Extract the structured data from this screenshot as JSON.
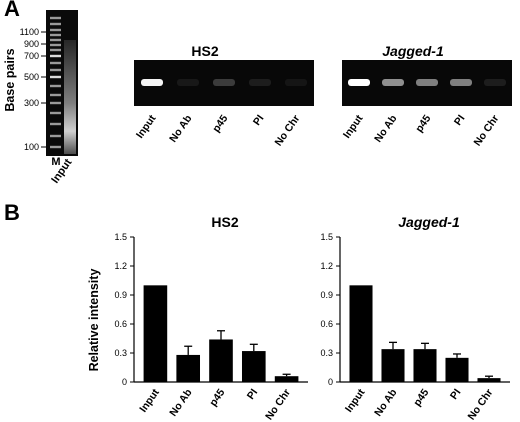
{
  "panel_a": {
    "letter": "A",
    "ladder": {
      "ylabel": "Base pairs",
      "tick_labels": [
        "1100",
        "900",
        "700",
        "500",
        "300",
        "100"
      ],
      "lane_labels": [
        "M",
        "Input"
      ]
    },
    "gels": [
      {
        "title": "HS2",
        "title_style": "bold",
        "lanes": [
          "Input",
          "No Ab",
          "p45",
          "PI",
          "No Chr"
        ],
        "band_intensity": [
          0.95,
          0.05,
          0.25,
          0.08,
          0.03
        ]
      },
      {
        "title": "Jagged-1",
        "title_style": "bold-italic",
        "lanes": [
          "Input",
          "No Ab",
          "p45",
          "PI",
          "No Chr"
        ],
        "band_intensity": [
          1.0,
          0.55,
          0.5,
          0.5,
          0.08
        ]
      }
    ]
  },
  "panel_b": {
    "letter": "B",
    "ylabel": "Relative intensity"
  },
  "chart_data": [
    {
      "type": "bar",
      "title": "HS2",
      "categories": [
        "Input",
        "No Ab",
        "p45",
        "PI",
        "No Chr"
      ],
      "values": [
        1.0,
        0.28,
        0.44,
        0.32,
        0.06
      ],
      "errors": [
        0.0,
        0.09,
        0.09,
        0.07,
        0.02
      ],
      "ylabel": "Relative intensity",
      "ylim": [
        0,
        1.5
      ],
      "yticks": [
        "0",
        "0.3",
        "0.6",
        "0.9",
        "1.2",
        "1.5"
      ],
      "bar_color": "#000000"
    },
    {
      "type": "bar",
      "title": "Jagged-1",
      "categories": [
        "Input",
        "No Ab",
        "p45",
        "PI",
        "No Chr"
      ],
      "values": [
        1.0,
        0.34,
        0.34,
        0.25,
        0.04
      ],
      "errors": [
        0.0,
        0.07,
        0.06,
        0.04,
        0.02
      ],
      "ylabel": "",
      "ylim": [
        0,
        1.5
      ],
      "yticks": [
        "0",
        "0.3",
        "0.6",
        "0.9",
        "1.2",
        "1.5"
      ],
      "bar_color": "#000000"
    }
  ]
}
